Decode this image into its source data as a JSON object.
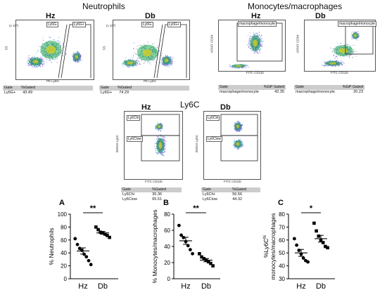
{
  "headers": {
    "neutrophils": "Neutrophils",
    "mono": "Monocytes/macrophages",
    "ly6c": "Ly6C"
  },
  "groups": {
    "hz": "Hz",
    "db": "Db"
  },
  "flow": {
    "neut_hz": {
      "gate_left": "Ly6G-",
      "gate_right": "Ly6G+",
      "yaxis": "SS",
      "xaxis": "PE Ly6G",
      "exp": "(x 10³)",
      "table": {
        "h1": "Gate",
        "h2": "%Gated",
        "row_name": "Ly6G+",
        "row_val": "43.49"
      }
    },
    "neut_db": {
      "gate_left": "Ly6G-",
      "gate_right": "Ly6G+",
      "yaxis": "SS",
      "xaxis": "PE Ly6G",
      "exp": "(x 10³)",
      "table": {
        "h1": "Gate",
        "h2": "%Gated",
        "row_name": "Ly6G+",
        "row_val": "74.29"
      }
    },
    "mono_hz": {
      "gate": "macrophage/monocyte",
      "yaxis": "AF647 CD64",
      "xaxis": "FITC CD11b",
      "table": {
        "h1": "Gate",
        "h2": "%GP Gated",
        "row_name": "macrophage/monocyte",
        "row_val": "42.35"
      }
    },
    "mono_db": {
      "gate": "macrophage/monocyte",
      "yaxis": "AF647 CD64",
      "xaxis": "FITC CD11b",
      "table": {
        "h1": "Gate",
        "h2": "%GP Gated",
        "row_name": "macrophage/monocyte",
        "row_val": "20.23"
      }
    },
    "ly6c_hz": {
      "gate_hi": "Ly6Chi",
      "gate_lo": "Ly6Clow",
      "yaxis": "BV510 Ly6C",
      "xaxis": "FITC CD11b",
      "table": {
        "h1": "Gate",
        "h2": "%Gated",
        "r1_name": "Ly6Chi",
        "r1_val": "35.36",
        "r2_name": "Ly6Clow",
        "r2_val": "65.51"
      }
    },
    "ly6c_db": {
      "gate_hi": "Ly6Chi",
      "gate_lo": "Ly6Clow",
      "yaxis": "BV510 Ly6C",
      "xaxis": "FITC CD11b",
      "table": {
        "h1": "Gate",
        "h2": "%Gated",
        "r1_name": "Ly6Chi",
        "r1_val": "56.56",
        "r2_name": "Ly6Clow",
        "r2_val": "44.32"
      }
    }
  },
  "chart_data": [
    {
      "type": "scatter",
      "panel": "A",
      "categories": [
        "Hz",
        "Db"
      ],
      "ylabel": "% Neutrophils",
      "ylim": [
        0,
        100
      ],
      "yticks": [
        0,
        20,
        40,
        60,
        80,
        100
      ],
      "significance": "**",
      "series": [
        {
          "name": "Hz",
          "marker": "circle",
          "values": [
            62,
            53,
            47,
            44,
            38,
            34,
            28,
            22
          ],
          "mean": 43,
          "sem": 4.8
        },
        {
          "name": "Db",
          "marker": "square",
          "values": [
            80,
            76,
            72,
            71,
            69,
            67,
            64
          ],
          "mean": 71,
          "sem": 2.2
        }
      ]
    },
    {
      "type": "scatter",
      "panel": "B",
      "categories": [
        "Hz",
        "Db"
      ],
      "ylabel": "% Monocytes/macrophages",
      "ylim": [
        0,
        80
      ],
      "yticks": [
        0,
        20,
        40,
        60,
        80
      ],
      "significance": "**",
      "series": [
        {
          "name": "Hz",
          "marker": "circle",
          "values": [
            66,
            54,
            51,
            46,
            41,
            36,
            31
          ],
          "mean": 47,
          "sem": 4.4
        },
        {
          "name": "Db",
          "marker": "square",
          "values": [
            31,
            27,
            25,
            23,
            21,
            19,
            16
          ],
          "mean": 23,
          "sem": 2.0
        }
      ]
    },
    {
      "type": "scatter",
      "panel": "C",
      "categories": [
        "Hz",
        "Db"
      ],
      "ylabel": "%Ly6Chi monocytes/macrophages",
      "ylim": [
        30,
        80
      ],
      "yticks": [
        30,
        40,
        50,
        60,
        70,
        80
      ],
      "significance": "*",
      "series": [
        {
          "name": "Hz",
          "marker": "circle",
          "values": [
            61,
            56,
            52,
            49,
            46,
            44,
            43
          ],
          "mean": 50,
          "sem": 2.7
        },
        {
          "name": "Db",
          "marker": "square",
          "values": [
            73,
            67,
            63,
            60,
            58,
            55,
            54
          ],
          "mean": 61,
          "sem": 2.6
        }
      ]
    }
  ]
}
